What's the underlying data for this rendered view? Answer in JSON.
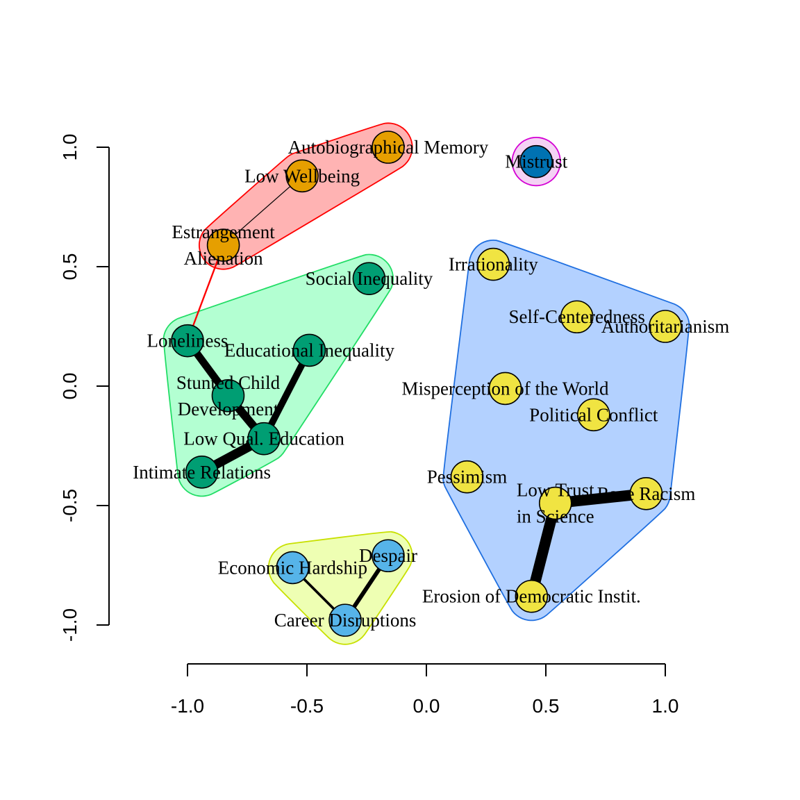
{
  "chart_data": {
    "type": "network",
    "xlim": [
      -1.0,
      1.0
    ],
    "ylim": [
      -1.0,
      1.0
    ],
    "x_ticks": [
      "-1.0",
      "-0.5",
      "0.0",
      "0.5",
      "1.0"
    ],
    "y_ticks": [
      "-1.0",
      "-0.5",
      "0.0",
      "0.5",
      "1.0"
    ],
    "groups": [
      {
        "id": "g1",
        "fill": "#ffb3b3",
        "stroke": "#ff0000",
        "members": [
          "n1",
          "n2",
          "n3"
        ]
      },
      {
        "id": "g2",
        "fill": "#f4d2f4",
        "stroke": "#d400d4",
        "members": [
          "n4"
        ]
      },
      {
        "id": "g3",
        "fill": "#b3ffd2",
        "stroke": "#22dd66",
        "members": [
          "n5",
          "n6",
          "n7",
          "n8",
          "n9",
          "n10"
        ]
      },
      {
        "id": "g4",
        "fill": "#b3d1ff",
        "stroke": "#1f6fe0",
        "members": [
          "n11",
          "n12",
          "n13",
          "n14",
          "n15",
          "n16",
          "n17",
          "n18",
          "n19"
        ]
      },
      {
        "id": "g5",
        "fill": "#eeffb3",
        "stroke": "#c8e000",
        "members": [
          "n20",
          "n21",
          "n22"
        ]
      }
    ],
    "nodes": [
      {
        "id": "n1",
        "lines": [
          "Autobiographical Memory"
        ],
        "x": -0.16,
        "y": 1.0,
        "color": "#e69f00"
      },
      {
        "id": "n2",
        "lines": [
          "Low Wellbeing"
        ],
        "x": -0.52,
        "y": 0.88,
        "color": "#e69f00"
      },
      {
        "id": "n3",
        "lines": [
          "Estrangement",
          "Alienation"
        ],
        "x": -0.85,
        "y": 0.59,
        "color": "#e69f00"
      },
      {
        "id": "n4",
        "lines": [
          "Mistrust"
        ],
        "x": 0.46,
        "y": 0.94,
        "color": "#0072b2"
      },
      {
        "id": "n5",
        "lines": [
          "Social Inequality"
        ],
        "x": -0.24,
        "y": 0.45,
        "color": "#009e73"
      },
      {
        "id": "n6",
        "lines": [
          "Loneliness"
        ],
        "x": -1.0,
        "y": 0.19,
        "color": "#009e73"
      },
      {
        "id": "n7",
        "lines": [
          "Educational Inequality"
        ],
        "x": -0.49,
        "y": 0.15,
        "color": "#009e73"
      },
      {
        "id": "n8",
        "lines": [
          "Stunted Child",
          "Development"
        ],
        "x": -0.83,
        "y": -0.04,
        "color": "#009e73"
      },
      {
        "id": "n9",
        "lines": [
          "Low Qual. Education"
        ],
        "x": -0.68,
        "y": -0.22,
        "color": "#009e73"
      },
      {
        "id": "n10",
        "lines": [
          "Intimate Relations"
        ],
        "x": -0.94,
        "y": -0.36,
        "color": "#009e73"
      },
      {
        "id": "n11",
        "lines": [
          "Irrationality"
        ],
        "x": 0.28,
        "y": 0.51,
        "color": "#f0e442"
      },
      {
        "id": "n12",
        "lines": [
          "Self-Centeredness"
        ],
        "x": 0.63,
        "y": 0.29,
        "color": "#f0e442"
      },
      {
        "id": "n13",
        "lines": [
          "Authoritarianism"
        ],
        "x": 1.0,
        "y": 0.25,
        "color": "#f0e442"
      },
      {
        "id": "n14",
        "lines": [
          "Misperception of the World"
        ],
        "x": 0.33,
        "y": -0.01,
        "color": "#f0e442"
      },
      {
        "id": "n15",
        "lines": [
          "Political Conflict"
        ],
        "x": 0.7,
        "y": -0.12,
        "color": "#f0e442"
      },
      {
        "id": "n16",
        "lines": [
          "Pessimism"
        ],
        "x": 0.17,
        "y": -0.38,
        "color": "#f0e442"
      },
      {
        "id": "n17",
        "lines": [
          "Low Trust",
          "in Science"
        ],
        "x": 0.54,
        "y": -0.49,
        "color": "#f0e442"
      },
      {
        "id": "n18",
        "lines": [
          "Race Racism"
        ],
        "x": 0.92,
        "y": -0.45,
        "color": "#f0e442"
      },
      {
        "id": "n19",
        "lines": [
          "Erosion of Democratic Instit."
        ],
        "x": 0.44,
        "y": -0.88,
        "color": "#f0e442"
      },
      {
        "id": "n20",
        "lines": [
          "Despair"
        ],
        "x": -0.16,
        "y": -0.71,
        "color": "#56b4e9"
      },
      {
        "id": "n21",
        "lines": [
          "Economic Hardship"
        ],
        "x": -0.56,
        "y": -0.76,
        "color": "#56b4e9"
      },
      {
        "id": "n22",
        "lines": [
          "Career Disruptions"
        ],
        "x": -0.34,
        "y": -0.98,
        "color": "#56b4e9"
      }
    ],
    "edges": [
      {
        "from": "n2",
        "to": "n3",
        "weight": 1,
        "color": "#000000"
      },
      {
        "from": "n3",
        "to": "n6",
        "weight": 2,
        "color": "#ff0000"
      },
      {
        "from": "n6",
        "to": "n8",
        "weight": 9,
        "color": "#000000"
      },
      {
        "from": "n8",
        "to": "n9",
        "weight": 10,
        "color": "#000000"
      },
      {
        "from": "n7",
        "to": "n9",
        "weight": 8,
        "color": "#000000"
      },
      {
        "from": "n9",
        "to": "n10",
        "weight": 11,
        "color": "#000000"
      },
      {
        "from": "n17",
        "to": "n18",
        "weight": 13,
        "color": "#000000"
      },
      {
        "from": "n17",
        "to": "n19",
        "weight": 13,
        "color": "#000000"
      },
      {
        "from": "n21",
        "to": "n22",
        "weight": 3,
        "color": "#000000"
      },
      {
        "from": "n20",
        "to": "n22",
        "weight": 5,
        "color": "#000000"
      }
    ]
  }
}
